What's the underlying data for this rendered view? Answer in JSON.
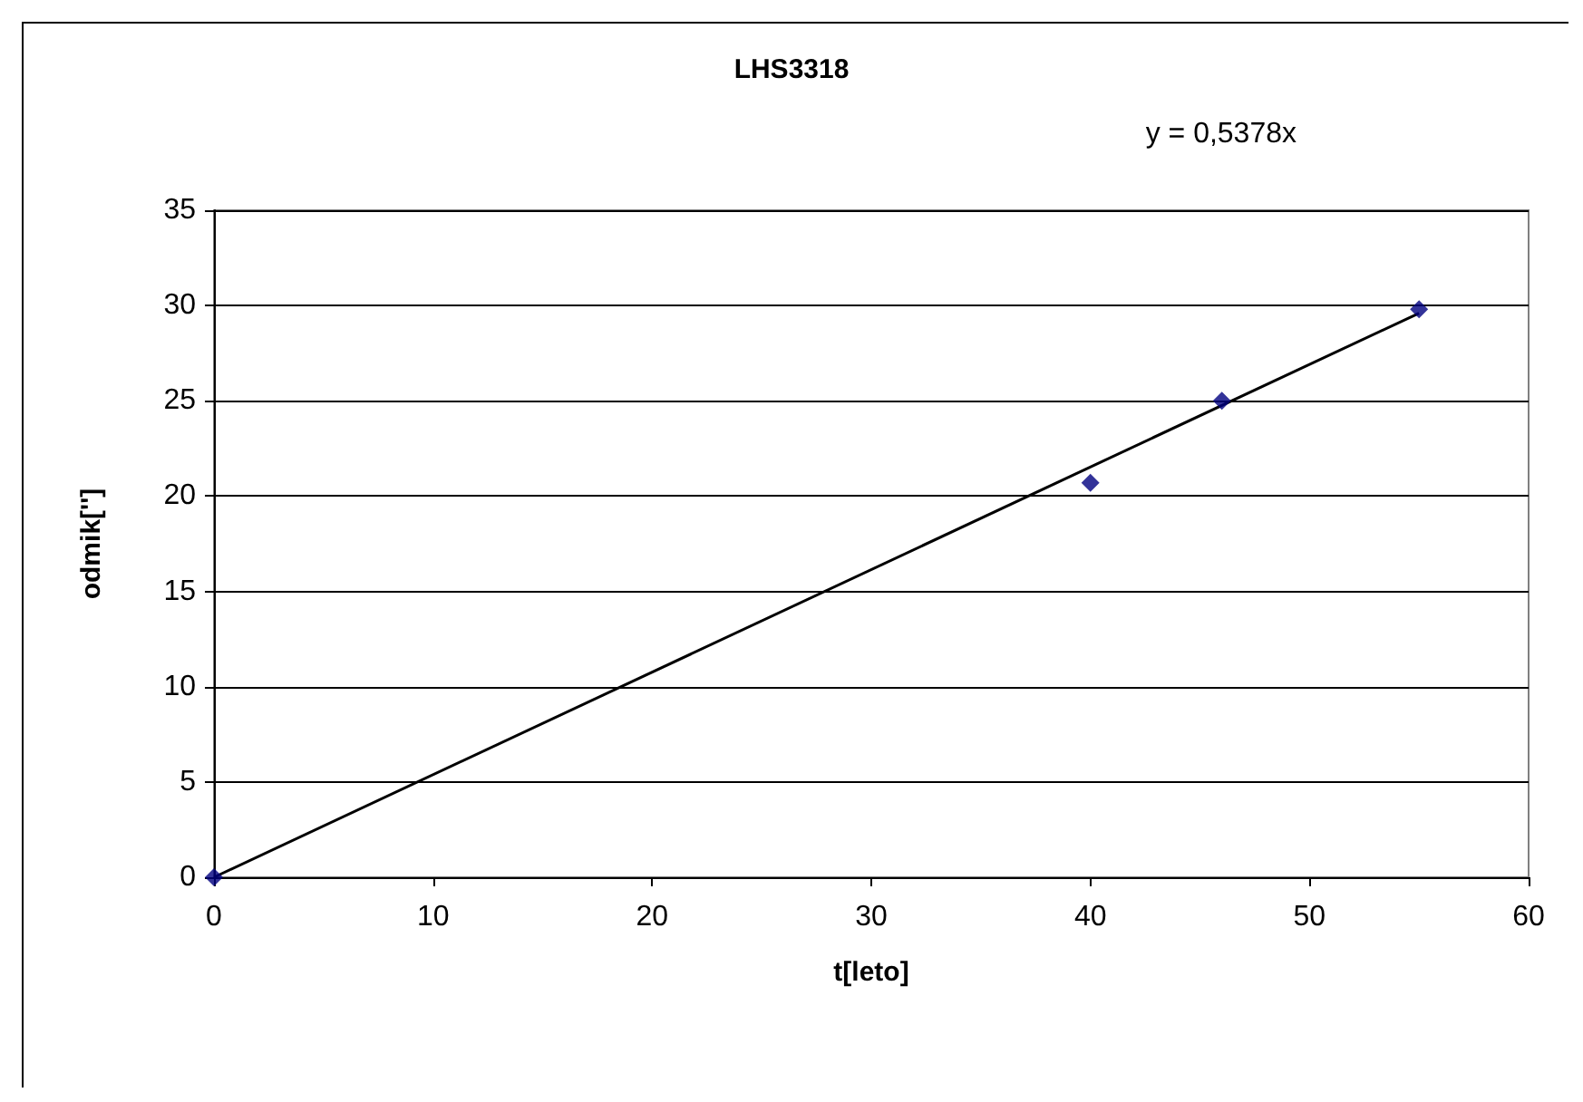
{
  "chart_data": {
    "type": "scatter",
    "title": "LHS3318",
    "xlabel": "t[leto]",
    "ylabel": "odmik['']",
    "annotations": [
      "y = 0,5378x"
    ],
    "series": [
      {
        "color": "#000080",
        "marker": "diamond",
        "x": [
          0,
          40,
          46,
          55
        ],
        "values": [
          0,
          20.7,
          25,
          29.8
        ]
      },
      {
        "type": "line",
        "color": "#000000",
        "marker": "none",
        "line_style": "solid",
        "x": [
          0,
          55
        ],
        "values": [
          0,
          29.6
        ]
      }
    ],
    "xlim": [
      0,
      60
    ],
    "xticks": [
      0,
      10,
      20,
      30,
      40,
      50,
      60
    ],
    "ylim": [
      0,
      35
    ],
    "yticks": [
      0,
      5,
      10,
      15,
      20,
      25,
      30,
      35
    ],
    "grid": "y"
  }
}
